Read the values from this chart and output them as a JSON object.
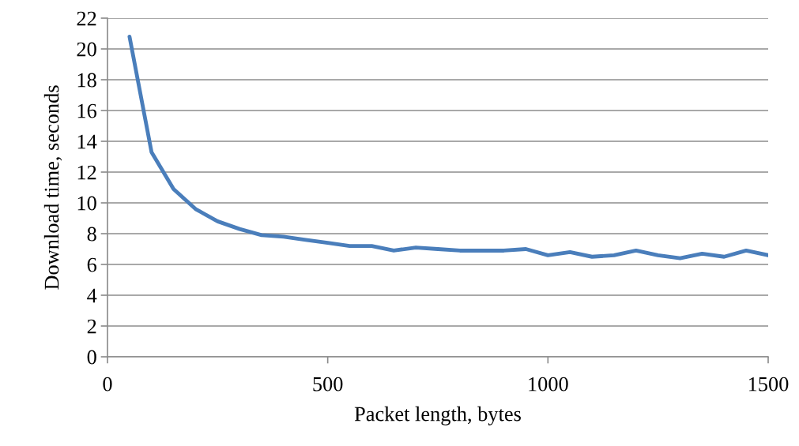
{
  "chart_data": {
    "type": "line",
    "xlabel": "Packet length, bytes",
    "ylabel": "Download time, seconds",
    "x": [
      50,
      100,
      150,
      200,
      250,
      300,
      350,
      400,
      450,
      500,
      550,
      600,
      650,
      700,
      750,
      800,
      850,
      900,
      950,
      1000,
      1050,
      1100,
      1150,
      1200,
      1250,
      1300,
      1350,
      1400,
      1450,
      1500
    ],
    "series": [
      {
        "color": "#4a7ebb",
        "values": [
          20.8,
          13.3,
          10.9,
          9.6,
          8.8,
          8.3,
          7.9,
          7.8,
          7.6,
          7.4,
          7.2,
          7.2,
          6.9,
          7.1,
          7.0,
          6.9,
          6.9,
          6.9,
          7.0,
          6.6,
          6.8,
          6.5,
          6.6,
          6.9,
          6.6,
          6.4,
          6.7,
          6.5,
          6.9,
          6.6
        ]
      }
    ],
    "xlim": [
      0,
      1500
    ],
    "xticks": [
      0,
      500,
      1000,
      1500
    ],
    "ylim": [
      0,
      22
    ],
    "yticks": [
      0,
      2,
      4,
      6,
      8,
      10,
      12,
      14,
      16,
      18,
      20,
      22
    ],
    "grid": "y",
    "legend": false,
    "marker": "none",
    "line_style": "solid"
  }
}
